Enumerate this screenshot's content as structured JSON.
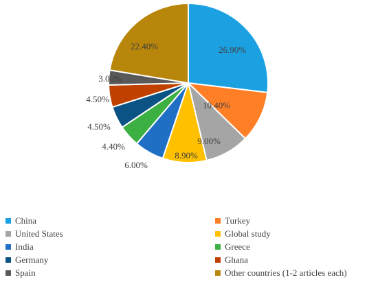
{
  "chart_data": {
    "type": "pie",
    "title": "",
    "slices": [
      {
        "name": "China",
        "value": 26.9,
        "label": "26.90%",
        "color": "#1BA1E2"
      },
      {
        "name": "Turkey",
        "value": 10.4,
        "label": "10.40%",
        "color": "#FF7F27"
      },
      {
        "name": "United States",
        "value": 9.0,
        "label": "9.00%",
        "color": "#A5A5A5"
      },
      {
        "name": "Global study",
        "value": 8.9,
        "label": "8.90%",
        "color": "#FFC000"
      },
      {
        "name": "India",
        "value": 6.0,
        "label": "6.00%",
        "color": "#1F6FC5"
      },
      {
        "name": "Greece",
        "value": 4.4,
        "label": "4.40%",
        "color": "#3CB043"
      },
      {
        "name": "Germany",
        "value": 4.5,
        "label": "4.50%",
        "color": "#0B5384"
      },
      {
        "name": "Ghana",
        "value": 4.5,
        "label": "4.50%",
        "color": "#C04000"
      },
      {
        "name": "Spain",
        "value": 3.0,
        "label": "3.00%",
        "color": "#595959"
      },
      {
        "name": "Other countries (1-2 articles each)",
        "value": 22.4,
        "label": "22.40%",
        "color": "#B8860B"
      }
    ],
    "legend_order": [
      "China",
      "Turkey",
      "United States",
      "Global study",
      "India",
      "Greece",
      "Germany",
      "Ghana",
      "Spain",
      "Other countries (1-2 articles each)"
    ],
    "legend_placement": "bottom"
  }
}
